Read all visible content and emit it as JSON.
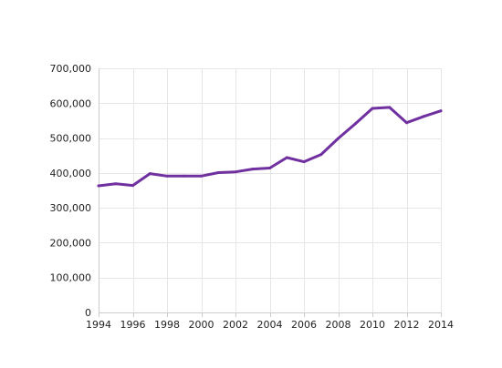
{
  "chart_data": {
    "type": "line",
    "title": "",
    "xlabel": "",
    "ylabel": "",
    "grid": true,
    "xlim": [
      1994,
      2014
    ],
    "ylim": [
      0,
      700000
    ],
    "x_ticks": [
      1994,
      1996,
      1998,
      2000,
      2002,
      2004,
      2006,
      2008,
      2010,
      2012,
      2014
    ],
    "x_tick_labels": [
      "1994",
      "1996",
      "1998",
      "2000",
      "2002",
      "2004",
      "2006",
      "2008",
      "2010",
      "2012",
      "2014"
    ],
    "y_ticks": [
      0,
      100000,
      200000,
      300000,
      400000,
      500000,
      600000,
      700000
    ],
    "y_tick_labels": [
      "0",
      "100,000",
      "200,000",
      "300,000",
      "400,000",
      "500,000",
      "600,000",
      "700,000"
    ],
    "x": [
      1994,
      1995,
      1996,
      1997,
      1998,
      1999,
      2000,
      2001,
      2002,
      2003,
      2004,
      2005,
      2006,
      2007,
      2008,
      2009,
      2010,
      2011,
      2012,
      2013,
      2014
    ],
    "series": [
      {
        "color": "#7030a0",
        "values": [
          363000,
          369000,
          364000,
          398000,
          391000,
          391000,
          391000,
          401000,
          403000,
          411000,
          414000,
          444000,
          432000,
          453000,
          499000,
          541000,
          585000,
          588000,
          544000,
          562000,
          578000
        ]
      }
    ]
  }
}
